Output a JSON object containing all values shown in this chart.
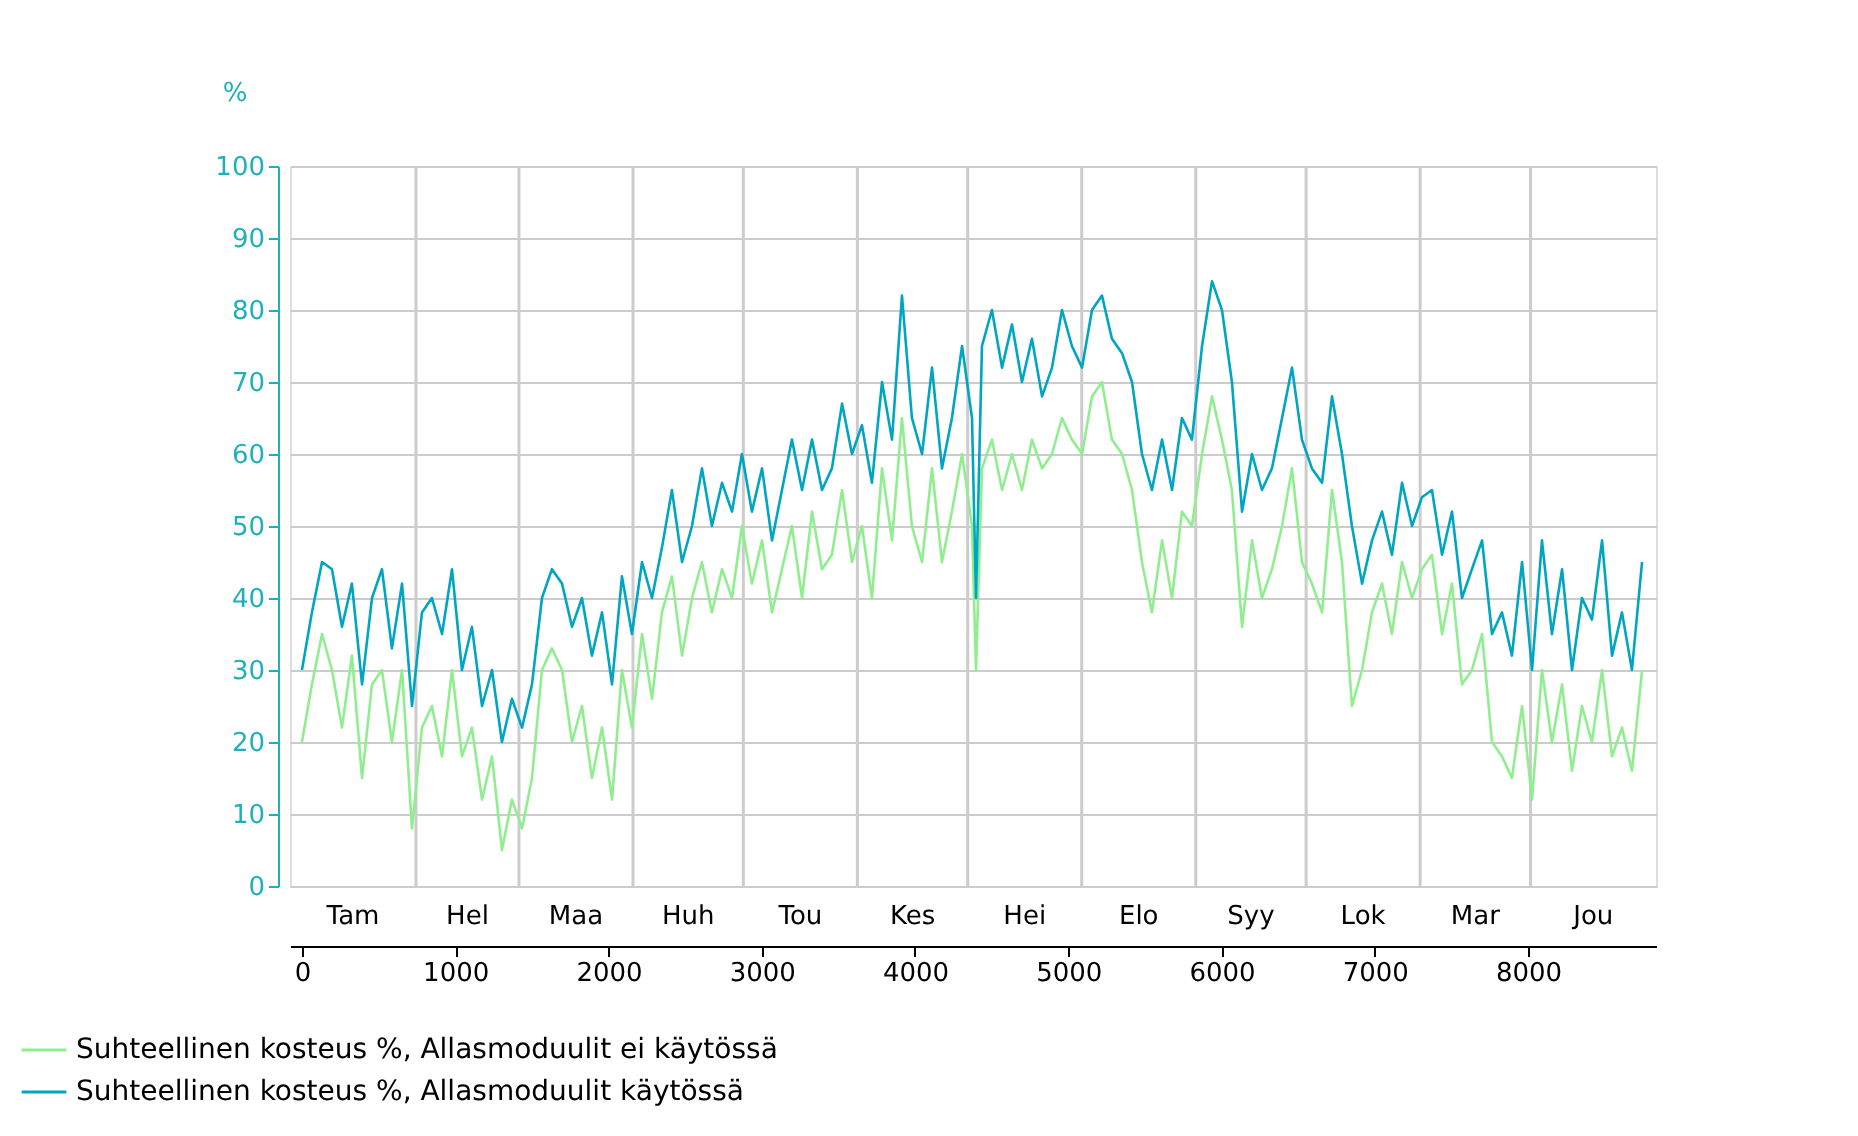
{
  "chart_data": {
    "type": "line",
    "ylabel": "%",
    "x": [
      0,
      65,
      131,
      196,
      261,
      326,
      392,
      457,
      522,
      587,
      653,
      718,
      783,
      848,
      914,
      979,
      1044,
      1109,
      1175,
      1240,
      1305,
      1370,
      1436,
      1501,
      1566,
      1631,
      1697,
      1762,
      1827,
      1892,
      1958,
      2023,
      2088,
      2153,
      2219,
      2284,
      2349,
      2414,
      2480,
      2545,
      2610,
      2675,
      2741,
      2806,
      2871,
      2936,
      3002,
      3067,
      3132,
      3197,
      3263,
      3328,
      3393,
      3458,
      3524,
      3589,
      3654,
      3719,
      3785,
      3850,
      3915,
      3980,
      4046,
      4111,
      4176,
      4241,
      4307,
      4372,
      4398,
      4437,
      4502,
      4568,
      4633,
      4698,
      4763,
      4829,
      4894,
      4959,
      5024,
      5090,
      5155,
      5220,
      5285,
      5351,
      5416,
      5481,
      5546,
      5612,
      5677,
      5742,
      5807,
      5873,
      5938,
      6003,
      6068,
      6134,
      6199,
      6264,
      6329,
      6395,
      6460,
      6525,
      6590,
      6656,
      6721,
      6786,
      6851,
      6917,
      6982,
      7047,
      7112,
      7178,
      7243,
      7308,
      7373,
      7439,
      7504,
      7569,
      7634,
      7700,
      7765,
      7830,
      7895,
      7961,
      8026,
      8091,
      8156,
      8222,
      8287,
      8352,
      8417,
      8483,
      8548,
      8613,
      8678,
      8744
    ],
    "series": [
      {
        "name": "Suhteellinen kosteus %, Allasmoduulit ei käytössä",
        "color": "#90ee90",
        "values": [
          20,
          28,
          35,
          30,
          22,
          32,
          15,
          28,
          30,
          20,
          30,
          8,
          22,
          25,
          18,
          30,
          18,
          22,
          12,
          18,
          5,
          12,
          8,
          15,
          30,
          33,
          30,
          20,
          25,
          15,
          22,
          12,
          30,
          22,
          35,
          26,
          38,
          43,
          32,
          40,
          45,
          38,
          44,
          40,
          50,
          42,
          48,
          38,
          44,
          50,
          40,
          52,
          44,
          46,
          55,
          45,
          50,
          40,
          58,
          48,
          65,
          50,
          45,
          58,
          45,
          52,
          60,
          50,
          30,
          58,
          62,
          55,
          60,
          55,
          62,
          58,
          60,
          65,
          62,
          60,
          68,
          70,
          62,
          60,
          55,
          45,
          38,
          48,
          40,
          52,
          50,
          60,
          68,
          62,
          55,
          36,
          48,
          40,
          44,
          50,
          58,
          45,
          42,
          38,
          55,
          45,
          25,
          30,
          38,
          42,
          35,
          45,
          40,
          44,
          46,
          35,
          42,
          28,
          30,
          35,
          20,
          18,
          15,
          25,
          12,
          30,
          20,
          28,
          16,
          25,
          20,
          30,
          18,
          22,
          16,
          30
        ]
      },
      {
        "name": "Suhteellinen kosteus %, Allasmoduulit käytössä",
        "color": "#00a5c2",
        "values": [
          30,
          38,
          45,
          44,
          36,
          42,
          28,
          40,
          44,
          33,
          42,
          25,
          38,
          40,
          35,
          44,
          30,
          36,
          25,
          30,
          20,
          26,
          22,
          28,
          40,
          44,
          42,
          36,
          40,
          32,
          38,
          28,
          43,
          35,
          45,
          40,
          47,
          55,
          45,
          50,
          58,
          50,
          56,
          52,
          60,
          52,
          58,
          48,
          55,
          62,
          55,
          62,
          55,
          58,
          67,
          60,
          64,
          56,
          70,
          62,
          82,
          65,
          60,
          72,
          58,
          65,
          75,
          65,
          40,
          75,
          80,
          72,
          78,
          70,
          76,
          68,
          72,
          80,
          75,
          72,
          80,
          82,
          76,
          74,
          70,
          60,
          55,
          62,
          55,
          65,
          62,
          75,
          84,
          80,
          70,
          52,
          60,
          55,
          58,
          65,
          72,
          62,
          58,
          56,
          68,
          60,
          50,
          42,
          48,
          52,
          46,
          56,
          50,
          54,
          55,
          46,
          52,
          40,
          44,
          48,
          35,
          38,
          32,
          45,
          30,
          48,
          35,
          44,
          30,
          40,
          37,
          48,
          32,
          38,
          30,
          45
        ]
      }
    ],
    "xlim": [
      -78,
      8835
    ],
    "xticks": [
      0,
      1000,
      2000,
      3000,
      4000,
      5000,
      6000,
      7000,
      8000
    ],
    "ylim": [
      0,
      100
    ],
    "yticks": [
      0,
      10,
      20,
      30,
      40,
      50,
      60,
      70,
      80,
      90,
      100
    ],
    "grid": "y",
    "ref_lines": [
      {
        "axis": "x",
        "value": 744,
        "color": "#cccccc"
      },
      {
        "axis": "x",
        "value": 1416,
        "color": "#cccccc"
      },
      {
        "axis": "x",
        "value": 2160,
        "color": "#cccccc"
      },
      {
        "axis": "x",
        "value": 2880,
        "color": "#cccccc"
      },
      {
        "axis": "x",
        "value": 3624,
        "color": "#cccccc"
      },
      {
        "axis": "x",
        "value": 4344,
        "color": "#cccccc"
      },
      {
        "axis": "x",
        "value": 5088,
        "color": "#cccccc"
      },
      {
        "axis": "x",
        "value": 5832,
        "color": "#cccccc"
      },
      {
        "axis": "x",
        "value": 6552,
        "color": "#cccccc"
      },
      {
        "axis": "x",
        "value": 7296,
        "color": "#cccccc"
      },
      {
        "axis": "x",
        "value": 8016,
        "color": "#cccccc"
      }
    ],
    "annotations": [
      "Tam",
      "Hel",
      "Maa",
      "Huh",
      "Tou",
      "Kes",
      "Hei",
      "Elo",
      "Syy",
      "Lok",
      "Mar",
      "Jou"
    ],
    "legend": "bottom left"
  }
}
